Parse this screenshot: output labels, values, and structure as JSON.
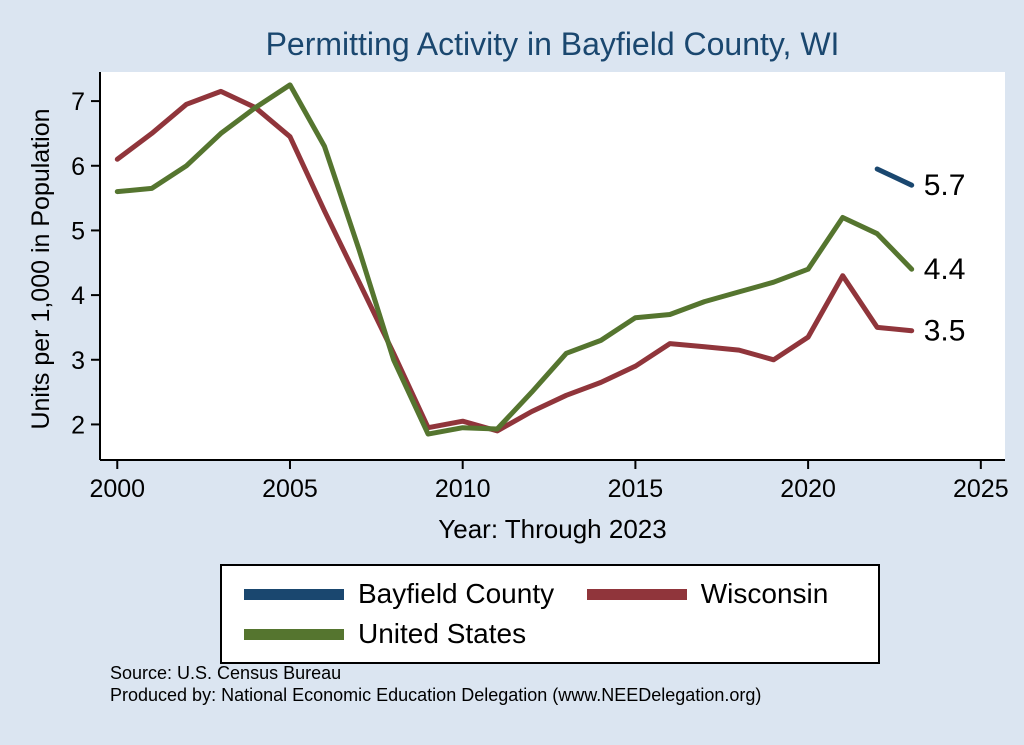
{
  "title": "Permitting Activity in Bayfield County, WI",
  "footer": {
    "source": "Source: U.S. Census Bureau",
    "produced_by": "Produced by: National Economic Education Delegation (www.NEEDelegation.org)"
  },
  "chart_data": {
    "type": "line",
    "title": "Permitting Activity in Bayfield County, WI",
    "xlabel": "Year: Through 2023",
    "ylabel": "Units per 1,000 in Population",
    "xlim": [
      1999.5,
      2025.7
    ],
    "ylim": [
      1.45,
      7.45
    ],
    "x_ticks": [
      2000,
      2005,
      2010,
      2015,
      2020,
      2025
    ],
    "y_ticks": [
      2,
      3,
      4,
      5,
      6,
      7
    ],
    "grid": false,
    "legend_position": "bottom",
    "background": "#dbe5f1",
    "plot_background": "#ffffff",
    "axis_color": "#000000",
    "series": [
      {
        "name": "Bayfield County",
        "color": "#1a476f",
        "x": [
          2022,
          2023
        ],
        "values": [
          5.95,
          5.7
        ],
        "end_label": "5.7"
      },
      {
        "name": "Wisconsin",
        "color": "#90353b",
        "x": [
          2000,
          2001,
          2002,
          2003,
          2004,
          2005,
          2006,
          2007,
          2008,
          2009,
          2010,
          2011,
          2012,
          2013,
          2014,
          2015,
          2016,
          2017,
          2018,
          2019,
          2020,
          2021,
          2022,
          2023
        ],
        "values": [
          6.1,
          6.5,
          6.95,
          7.15,
          6.9,
          6.45,
          5.3,
          4.2,
          3.1,
          1.95,
          2.05,
          1.9,
          2.2,
          2.45,
          2.65,
          2.9,
          3.25,
          3.2,
          3.15,
          3.0,
          3.35,
          4.3,
          3.5,
          3.45
        ],
        "end_label": "3.5"
      },
      {
        "name": "United States",
        "color": "#55752f",
        "x": [
          2000,
          2001,
          2002,
          2003,
          2004,
          2005,
          2006,
          2007,
          2008,
          2009,
          2010,
          2011,
          2012,
          2013,
          2014,
          2015,
          2016,
          2017,
          2018,
          2019,
          2020,
          2021,
          2022,
          2023
        ],
        "values": [
          5.6,
          5.65,
          6.0,
          6.5,
          6.9,
          7.25,
          6.3,
          4.7,
          3.0,
          1.85,
          1.95,
          1.93,
          2.5,
          3.1,
          3.3,
          3.65,
          3.7,
          3.9,
          4.05,
          4.2,
          4.4,
          5.2,
          4.95,
          4.4
        ],
        "end_label": "4.4"
      }
    ]
  }
}
